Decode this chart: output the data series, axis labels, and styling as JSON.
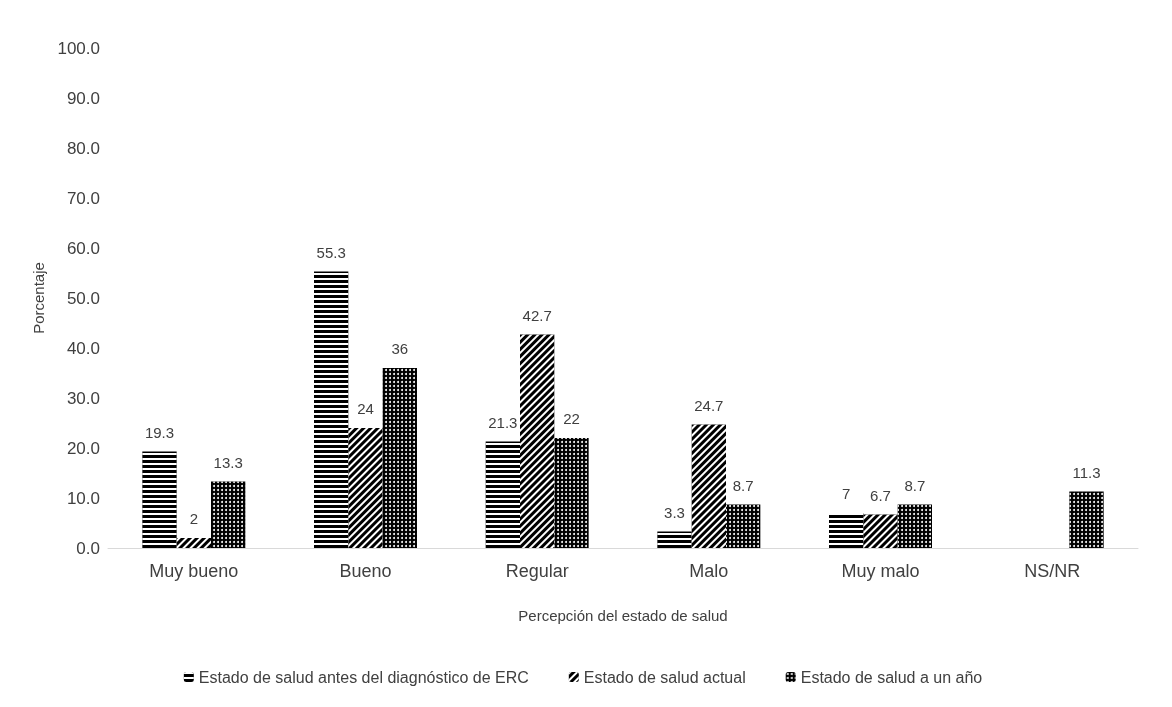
{
  "chart_data": {
    "type": "bar",
    "xlabel": "Percepción del estado de salud",
    "ylabel": "Porcentaje",
    "categories": [
      "Muy bueno",
      "Bueno",
      "Regular",
      "Malo",
      "Muy malo",
      "NS/NR"
    ],
    "series": [
      {
        "name": "Estado de salud antes del diagnóstico de ERC",
        "color": "#000000",
        "values": [
          19.3,
          55.3,
          21.3,
          3.3,
          7,
          null
        ]
      },
      {
        "name": "Estado de salud actual",
        "color": "#000000",
        "values": [
          2,
          24,
          42.7,
          24.7,
          6.7,
          null
        ]
      },
      {
        "name": "Estado de salud a un año",
        "color": "#000000",
        "values": [
          13.3,
          36,
          22,
          8.7,
          8.7,
          11.3
        ]
      }
    ],
    "ylim": [
      0,
      100
    ],
    "yticks": [
      {
        "value": 0,
        "label": "0.0"
      },
      {
        "value": 10,
        "label": "10.0"
      },
      {
        "value": 20,
        "label": "20.0"
      },
      {
        "value": 30,
        "label": "30.0"
      },
      {
        "value": 40,
        "label": "40.0"
      },
      {
        "value": 50,
        "label": "50.0"
      },
      {
        "value": 60,
        "label": "60.0"
      },
      {
        "value": 70,
        "label": "70.0"
      },
      {
        "value": 80,
        "label": "80.0"
      },
      {
        "value": 90,
        "label": "90.0"
      },
      {
        "value": 100,
        "label": "100.0"
      }
    ],
    "data_labels": true,
    "grid": false,
    "legend": "bottom"
  }
}
